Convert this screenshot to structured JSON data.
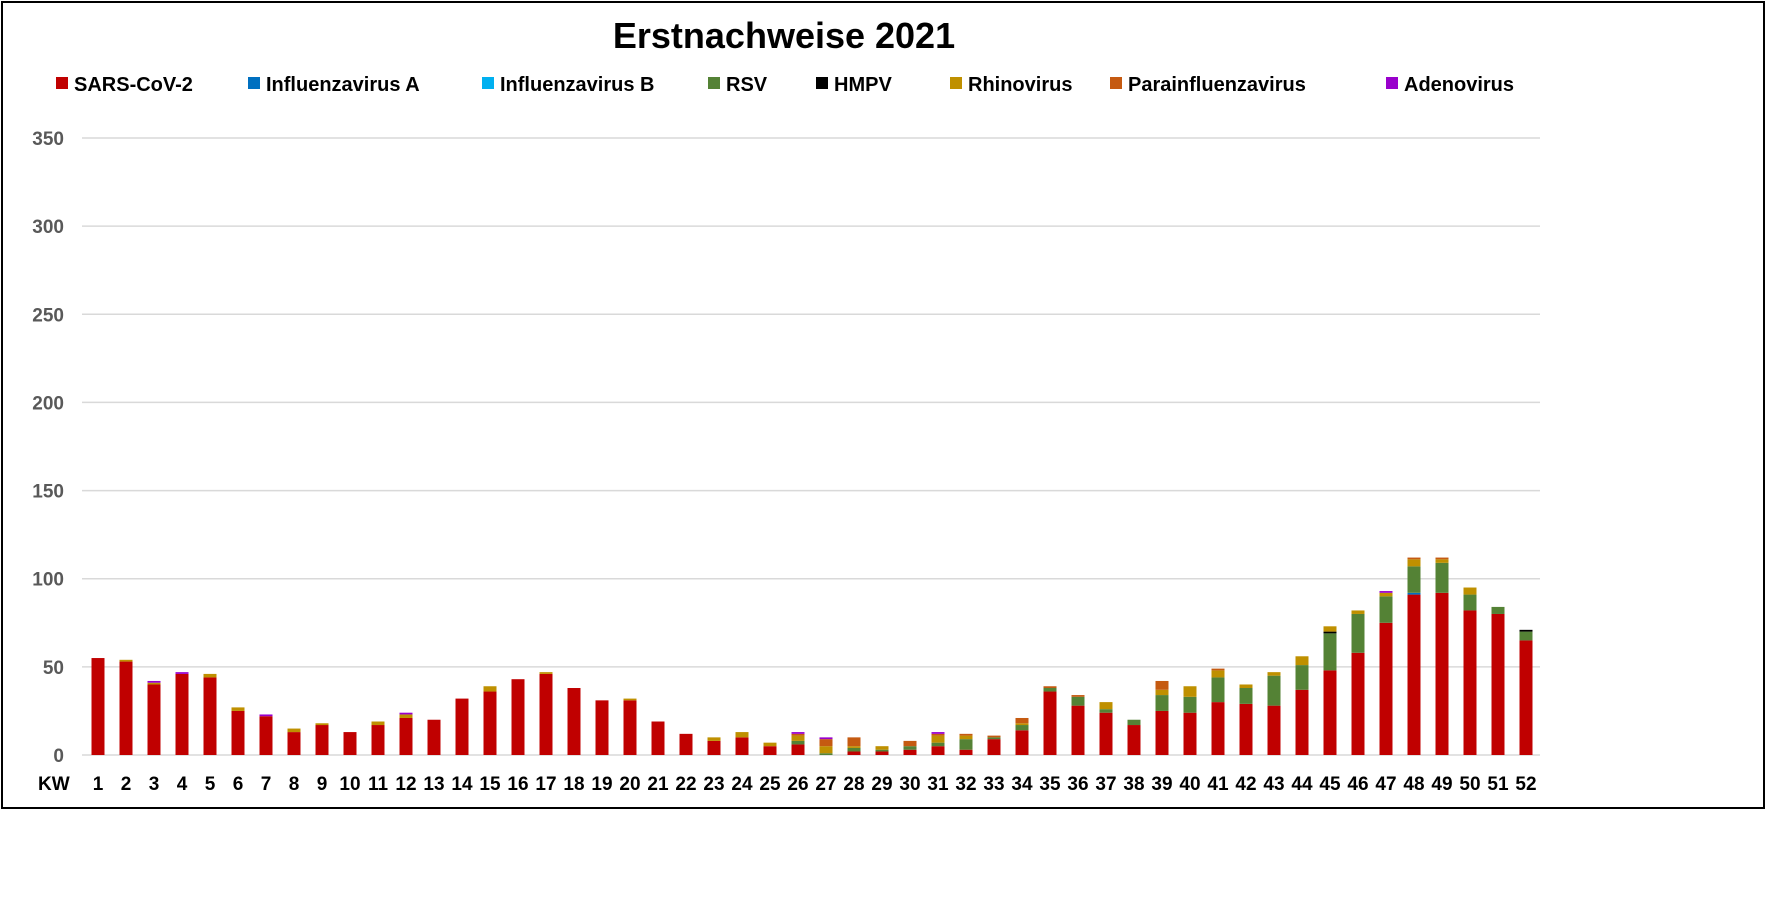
{
  "chart_data": {
    "type": "bar",
    "stacked": true,
    "title": "Erstnachweise 2021",
    "xlabel": "KW",
    "ylabel": "",
    "ylim": [
      0,
      350
    ],
    "yticks": [
      0,
      50,
      100,
      150,
      200,
      250,
      300,
      350
    ],
    "grid": true,
    "legend_position": "top",
    "categories": [
      "1",
      "2",
      "3",
      "4",
      "5",
      "6",
      "7",
      "8",
      "9",
      "10",
      "11",
      "12",
      "13",
      "14",
      "15",
      "16",
      "17",
      "18",
      "19",
      "20",
      "21",
      "22",
      "23",
      "24",
      "25",
      "26",
      "27",
      "28",
      "29",
      "30",
      "31",
      "32",
      "33",
      "34",
      "35",
      "36",
      "37",
      "38",
      "39",
      "40",
      "41",
      "42",
      "43",
      "44",
      "45",
      "46",
      "47",
      "48",
      "49",
      "50",
      "51",
      "52"
    ],
    "series": [
      {
        "name": "SARS-CoV-2",
        "color": "#C00000",
        "values": [
          55,
          53,
          40,
          46,
          44,
          25,
          22,
          13,
          17,
          13,
          17,
          21,
          20,
          32,
          36,
          43,
          46,
          38,
          31,
          31,
          19,
          12,
          8,
          10,
          5,
          6,
          0,
          2,
          2,
          3,
          5,
          3,
          9,
          14,
          36,
          28,
          24,
          17,
          25,
          24,
          30,
          29,
          28,
          37,
          48,
          58,
          75,
          91,
          92,
          82,
          80,
          65
        ]
      },
      {
        "name": "Influenzavirus A",
        "color": "#0070C0",
        "values": [
          0,
          0,
          0,
          0,
          0,
          0,
          0,
          0,
          0,
          0,
          0,
          0,
          0,
          0,
          0,
          0,
          0,
          0,
          0,
          0,
          0,
          0,
          0,
          0,
          0,
          0,
          0,
          0,
          0,
          0,
          0,
          0,
          0,
          0,
          0,
          0,
          0,
          0,
          0,
          0,
          0,
          0,
          0,
          0,
          0,
          0,
          0,
          1,
          0,
          0,
          0,
          0
        ]
      },
      {
        "name": "Influenzavirus B",
        "color": "#00B0F0",
        "values": [
          0,
          0,
          0,
          0,
          0,
          0,
          0,
          0,
          0,
          0,
          0,
          0,
          0,
          0,
          0,
          0,
          0,
          0,
          0,
          0,
          0,
          0,
          0,
          0,
          0,
          0,
          0,
          0,
          0,
          0,
          0,
          0,
          0,
          0,
          0,
          0,
          0,
          0,
          0,
          0,
          0,
          0,
          0,
          0,
          0,
          0,
          0,
          0,
          0,
          0,
          0,
          0
        ]
      },
      {
        "name": "RSV",
        "color": "#548235",
        "values": [
          0,
          0,
          0,
          0,
          0,
          0,
          0,
          0,
          0,
          0,
          0,
          0,
          0,
          0,
          0,
          0,
          0,
          0,
          0,
          0,
          0,
          0,
          0,
          0,
          0,
          2,
          1,
          2,
          1,
          2,
          2,
          6,
          1,
          3,
          2,
          5,
          2,
          3,
          9,
          9,
          14,
          9,
          17,
          14,
          21,
          22,
          15,
          15,
          17,
          9,
          4,
          5
        ]
      },
      {
        "name": "HMPV",
        "color": "#000000",
        "values": [
          0,
          0,
          0,
          0,
          0,
          0,
          0,
          0,
          0,
          0,
          0,
          0,
          0,
          0,
          0,
          0,
          0,
          0,
          0,
          0,
          0,
          0,
          0,
          0,
          0,
          0,
          0,
          0,
          0,
          0,
          0,
          0,
          0,
          0,
          0,
          0,
          0,
          0,
          0,
          0,
          0,
          0,
          0,
          0,
          1,
          0,
          0,
          0,
          0,
          0,
          0,
          1
        ]
      },
      {
        "name": "Rhinovirus",
        "color": "#BF9000",
        "values": [
          0,
          1,
          1,
          0,
          2,
          2,
          0,
          2,
          1,
          0,
          2,
          2,
          0,
          0,
          3,
          0,
          1,
          0,
          0,
          1,
          0,
          0,
          2,
          3,
          2,
          3,
          4,
          1,
          2,
          0,
          4,
          2,
          0,
          1,
          0,
          0,
          4,
          0,
          3,
          6,
          4,
          2,
          2,
          5,
          3,
          2,
          2,
          4,
          2,
          4,
          0,
          0
        ]
      },
      {
        "name": "Parainfluenzavirus",
        "color": "#C55A11",
        "values": [
          0,
          0,
          0,
          0,
          0,
          0,
          0,
          0,
          0,
          0,
          0,
          0,
          0,
          0,
          0,
          0,
          0,
          0,
          0,
          0,
          0,
          0,
          0,
          0,
          0,
          1,
          4,
          5,
          0,
          3,
          1,
          1,
          1,
          3,
          1,
          1,
          0,
          0,
          5,
          0,
          1,
          0,
          0,
          0,
          0,
          0,
          0,
          1,
          1,
          0,
          0,
          0
        ]
      },
      {
        "name": "Adenovirus",
        "color": "#9900CC",
        "values": [
          0,
          0,
          1,
          1,
          0,
          0,
          1,
          0,
          0,
          0,
          0,
          1,
          0,
          0,
          0,
          0,
          0,
          0,
          0,
          0,
          0,
          0,
          0,
          0,
          0,
          1,
          1,
          0,
          0,
          0,
          1,
          0,
          0,
          0,
          0,
          0,
          0,
          0,
          0,
          0,
          0,
          0,
          0,
          0,
          0,
          0,
          1,
          0,
          0,
          0,
          0,
          0
        ]
      }
    ]
  }
}
